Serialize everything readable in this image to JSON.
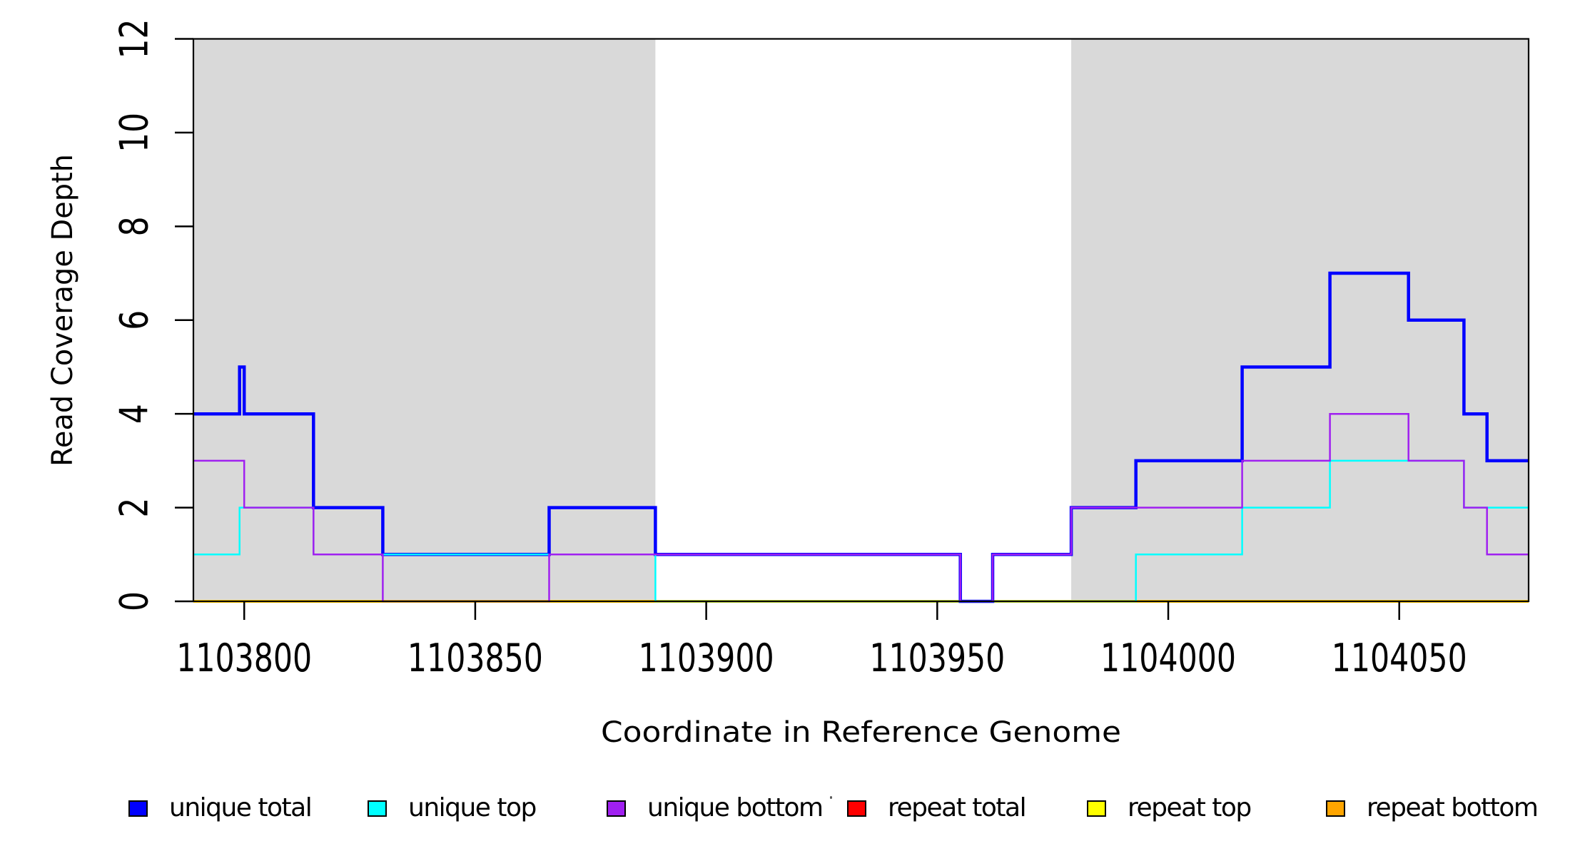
{
  "figure": {
    "background": "#FFFFFF",
    "axis_color": "#000000",
    "shade_color": "#D9D9D9"
  },
  "chart_data": {
    "type": "line",
    "subtype": "step",
    "title": "",
    "xlabel": "Coordinate in Reference Genome",
    "ylabel": "Read Coverage Depth",
    "xlim": [
      1103789,
      1104078
    ],
    "ylim": [
      0,
      12
    ],
    "x_ticks": [
      1103800,
      1103850,
      1103900,
      1103950,
      1104000,
      1104050
    ],
    "x_tick_labels": [
      "1103800",
      "1103850",
      "1103900",
      "1103950",
      "1104000",
      "1104050"
    ],
    "y_ticks": [
      0,
      2,
      4,
      6,
      8,
      10,
      12
    ],
    "y_tick_labels": [
      "0",
      "2",
      "4",
      "6",
      "8",
      "10",
      "12"
    ],
    "grid": false,
    "legend_position": "bottom",
    "shaded_regions": [
      {
        "x0": 1103789,
        "x1": 1103889,
        "color": "#D9D9D9"
      },
      {
        "x0": 1103979,
        "x1": 1104078,
        "color": "#D9D9D9"
      }
    ],
    "draw_order": [
      3,
      4,
      5,
      0,
      1,
      2
    ],
    "x_end": 1104078,
    "series": [
      {
        "name": "unique total",
        "color": "#0000FF",
        "line_width": 4.5,
        "x": [
          1103789,
          1103799,
          1103800,
          1103815,
          1103830,
          1103866,
          1103889,
          1103955,
          1103962,
          1103979,
          1103993,
          1104016,
          1104035,
          1104052,
          1104064,
          1104069
        ],
        "values": [
          4,
          5,
          4,
          2,
          1,
          2,
          1,
          0,
          1,
          2,
          3,
          5,
          7,
          6,
          4,
          3
        ]
      },
      {
        "name": "unique top",
        "color": "#00FFFF",
        "line_width": 2.5,
        "x": [
          1103789,
          1103799,
          1103815,
          1103889,
          1103993,
          1104016,
          1104035,
          1104064
        ],
        "values": [
          1,
          2,
          1,
          0,
          1,
          2,
          3,
          2
        ]
      },
      {
        "name": "unique bottom",
        "color": "#A020F0",
        "line_width": 2.5,
        "x": [
          1103789,
          1103800,
          1103815,
          1103830,
          1103866,
          1103955,
          1103962,
          1103979,
          1104016,
          1104035,
          1104052,
          1104064,
          1104069
        ],
        "values": [
          3,
          2,
          1,
          0,
          1,
          0,
          1,
          2,
          3,
          4,
          3,
          2,
          1
        ]
      },
      {
        "name": "repeat total",
        "color": "#FF0000",
        "line_width": 4,
        "x": [
          1103789
        ],
        "values": [
          0
        ]
      },
      {
        "name": "repeat top",
        "color": "#FFFF00",
        "line_width": 4,
        "x": [
          1103789
        ],
        "values": [
          0
        ]
      },
      {
        "name": "repeat bottom",
        "color": "#FFA500",
        "line_width": 3.2,
        "x": [
          1103789
        ],
        "values": [
          0
        ]
      }
    ]
  },
  "legend": {
    "items": [
      {
        "label": "unique total"
      },
      {
        "label": "unique top"
      },
      {
        "label": "unique bottom"
      },
      {
        "label": "repeat total"
      },
      {
        "label": "repeat top"
      },
      {
        "label": "repeat bottom"
      }
    ]
  }
}
